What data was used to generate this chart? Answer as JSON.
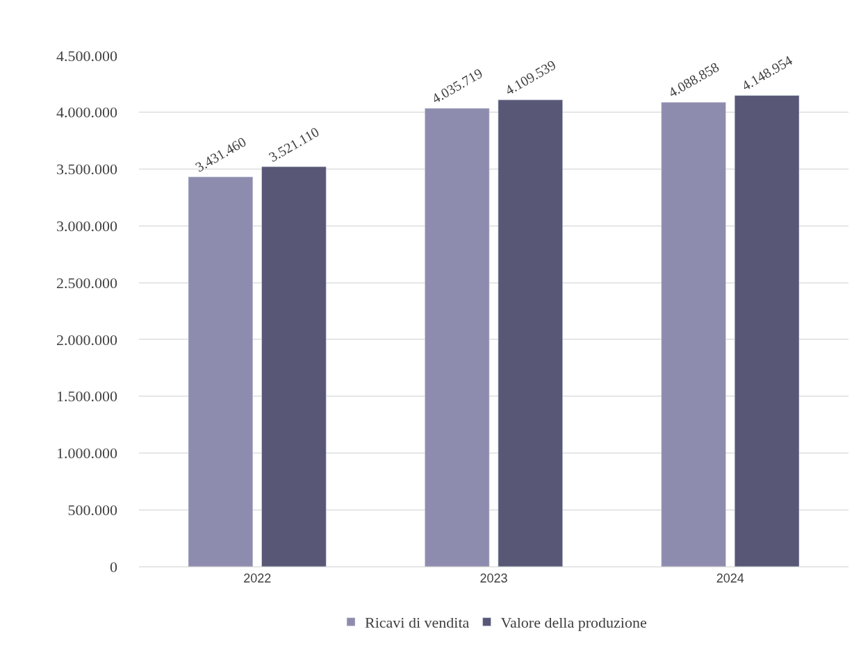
{
  "chart_data": {
    "type": "bar",
    "categories": [
      "2022",
      "2023",
      "2024"
    ],
    "series": [
      {
        "name": "Ricavi di vendita",
        "color": "#8e8cae",
        "values": [
          3431460,
          4035719,
          4088858
        ],
        "value_labels": [
          "3.431.460",
          "4.035.719",
          "4.088.858"
        ]
      },
      {
        "name": "Valore della produzione",
        "color": "#585876",
        "values": [
          3521110,
          4109539,
          4148954
        ],
        "value_labels": [
          "3.521.110",
          "4.109.539",
          "4.148.954"
        ]
      }
    ],
    "ylim": [
      0,
      4500000
    ],
    "yticks": [
      {
        "value": 0,
        "label": "0"
      },
      {
        "value": 500000,
        "label": "500.000"
      },
      {
        "value": 1000000,
        "label": "1.000.000"
      },
      {
        "value": 1500000,
        "label": "1.500.000"
      },
      {
        "value": 2000000,
        "label": "2.000.000"
      },
      {
        "value": 2500000,
        "label": "2.500.000"
      },
      {
        "value": 3000000,
        "label": "3.000.000"
      },
      {
        "value": 3500000,
        "label": "3.500.000"
      },
      {
        "value": 4000000,
        "label": "4.000.000"
      },
      {
        "value": 4500000,
        "label": "4.500.000"
      }
    ],
    "grid": "y",
    "legend": "bottom"
  }
}
